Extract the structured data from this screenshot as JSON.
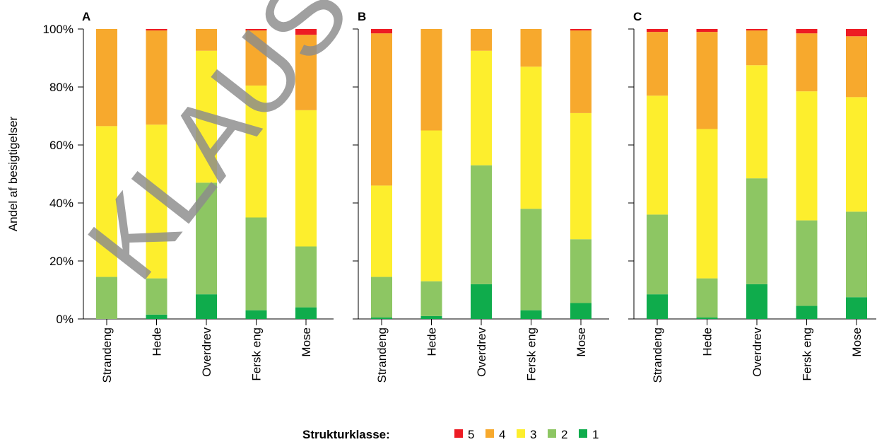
{
  "chart_data": {
    "type": "bar",
    "stacked": true,
    "ylabel": "Andel af besigtigelser",
    "ylim": [
      0,
      100
    ],
    "yticks": [
      "0%",
      "20%",
      "40%",
      "60%",
      "80%",
      "100%"
    ],
    "categories": [
      "Strandeng",
      "Hede",
      "Overdrev",
      "Fersk eng",
      "Mose"
    ],
    "legend": {
      "title": "Strukturklasse:",
      "position": "bottom",
      "entries": [
        {
          "name": "5",
          "color": "#ed1c24"
        },
        {
          "name": "4",
          "color": "#f7a92d"
        },
        {
          "name": "3",
          "color": "#fdee2d"
        },
        {
          "name": "2",
          "color": "#8dc663"
        },
        {
          "name": "1",
          "color": "#0fac4c"
        }
      ]
    },
    "panels": [
      {
        "label": "A",
        "series": [
          {
            "name": "1",
            "values": [
              0,
              1.5,
              8.5,
              3,
              4
            ]
          },
          {
            "name": "2",
            "values": [
              14.5,
              12.5,
              38.5,
              32,
              21
            ]
          },
          {
            "name": "3",
            "values": [
              52,
              53,
              45.5,
              45.5,
              47
            ]
          },
          {
            "name": "4",
            "values": [
              33.5,
              32.5,
              7.5,
              19,
              26
            ]
          },
          {
            "name": "5",
            "values": [
              0,
              0.5,
              0,
              0.5,
              2
            ]
          }
        ]
      },
      {
        "label": "B",
        "series": [
          {
            "name": "1",
            "values": [
              0.5,
              1,
              12,
              3,
              5.5
            ]
          },
          {
            "name": "2",
            "values": [
              14,
              12,
              41,
              35,
              22
            ]
          },
          {
            "name": "3",
            "values": [
              31.5,
              52,
              39.5,
              49,
              43.5
            ]
          },
          {
            "name": "4",
            "values": [
              52.5,
              35,
              7.5,
              13,
              28.5
            ]
          },
          {
            "name": "5",
            "values": [
              1.5,
              0,
              0,
              0,
              0.5
            ]
          }
        ]
      },
      {
        "label": "C",
        "series": [
          {
            "name": "1",
            "values": [
              8.5,
              0.5,
              12,
              4.5,
              7.5
            ]
          },
          {
            "name": "2",
            "values": [
              27.5,
              13.5,
              36.5,
              29.5,
              29.5
            ]
          },
          {
            "name": "3",
            "values": [
              41,
              51.5,
              39,
              44.5,
              39.5
            ]
          },
          {
            "name": "4",
            "values": [
              22,
              33.5,
              12,
              20,
              21
            ]
          },
          {
            "name": "5",
            "values": [
              1,
              1,
              0.5,
              1.5,
              2.5
            ]
          }
        ]
      }
    ]
  },
  "watermark": "KLAUS"
}
